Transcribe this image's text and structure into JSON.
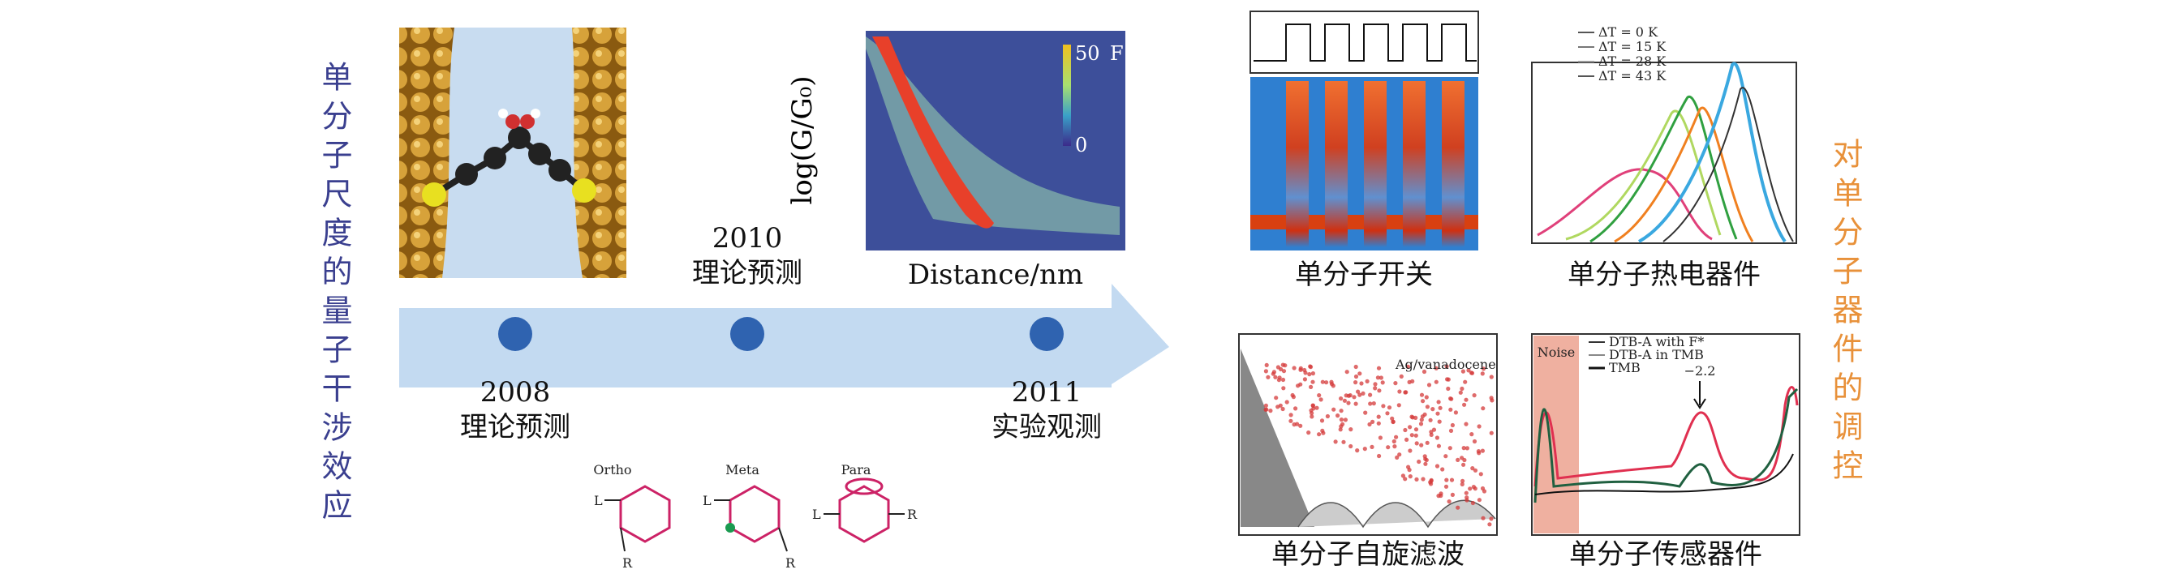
{
  "left_title": "单分子尺度的量子干涉效应",
  "right_title": "对单分子器件的调控",
  "timeline": [
    {
      "year": "2008",
      "label": "理论预测"
    },
    {
      "year": "2010",
      "label": "理论预测"
    },
    {
      "year": "2011",
      "label": "实验观测"
    }
  ],
  "conductance_plot": {
    "ylabel": "log(G/G₀)",
    "xlabel": "Distance/nm",
    "colorbar_max": "50",
    "colorbar_min": "0",
    "colorbar_label": "F"
  },
  "substitution": {
    "labels": [
      "Ortho",
      "Meta",
      "Para"
    ],
    "left_group": "L",
    "right_group": "R"
  },
  "panels": [
    {
      "caption": "单分子开关"
    },
    {
      "caption": "单分子热电器件",
      "legend": [
        "ΔT = 0 K",
        "ΔT = 15 K",
        "ΔT = 28 K",
        "ΔT = 43 K"
      ]
    },
    {
      "caption": "单分子自旋滤波",
      "annotation": "Ag/vanadocene"
    },
    {
      "caption": "单分子传感器件",
      "noise": "Noise",
      "legend": [
        "DTB-A with F*",
        "DTB-A in TMB",
        "TMB"
      ],
      "annotation": "−2.2"
    }
  ]
}
